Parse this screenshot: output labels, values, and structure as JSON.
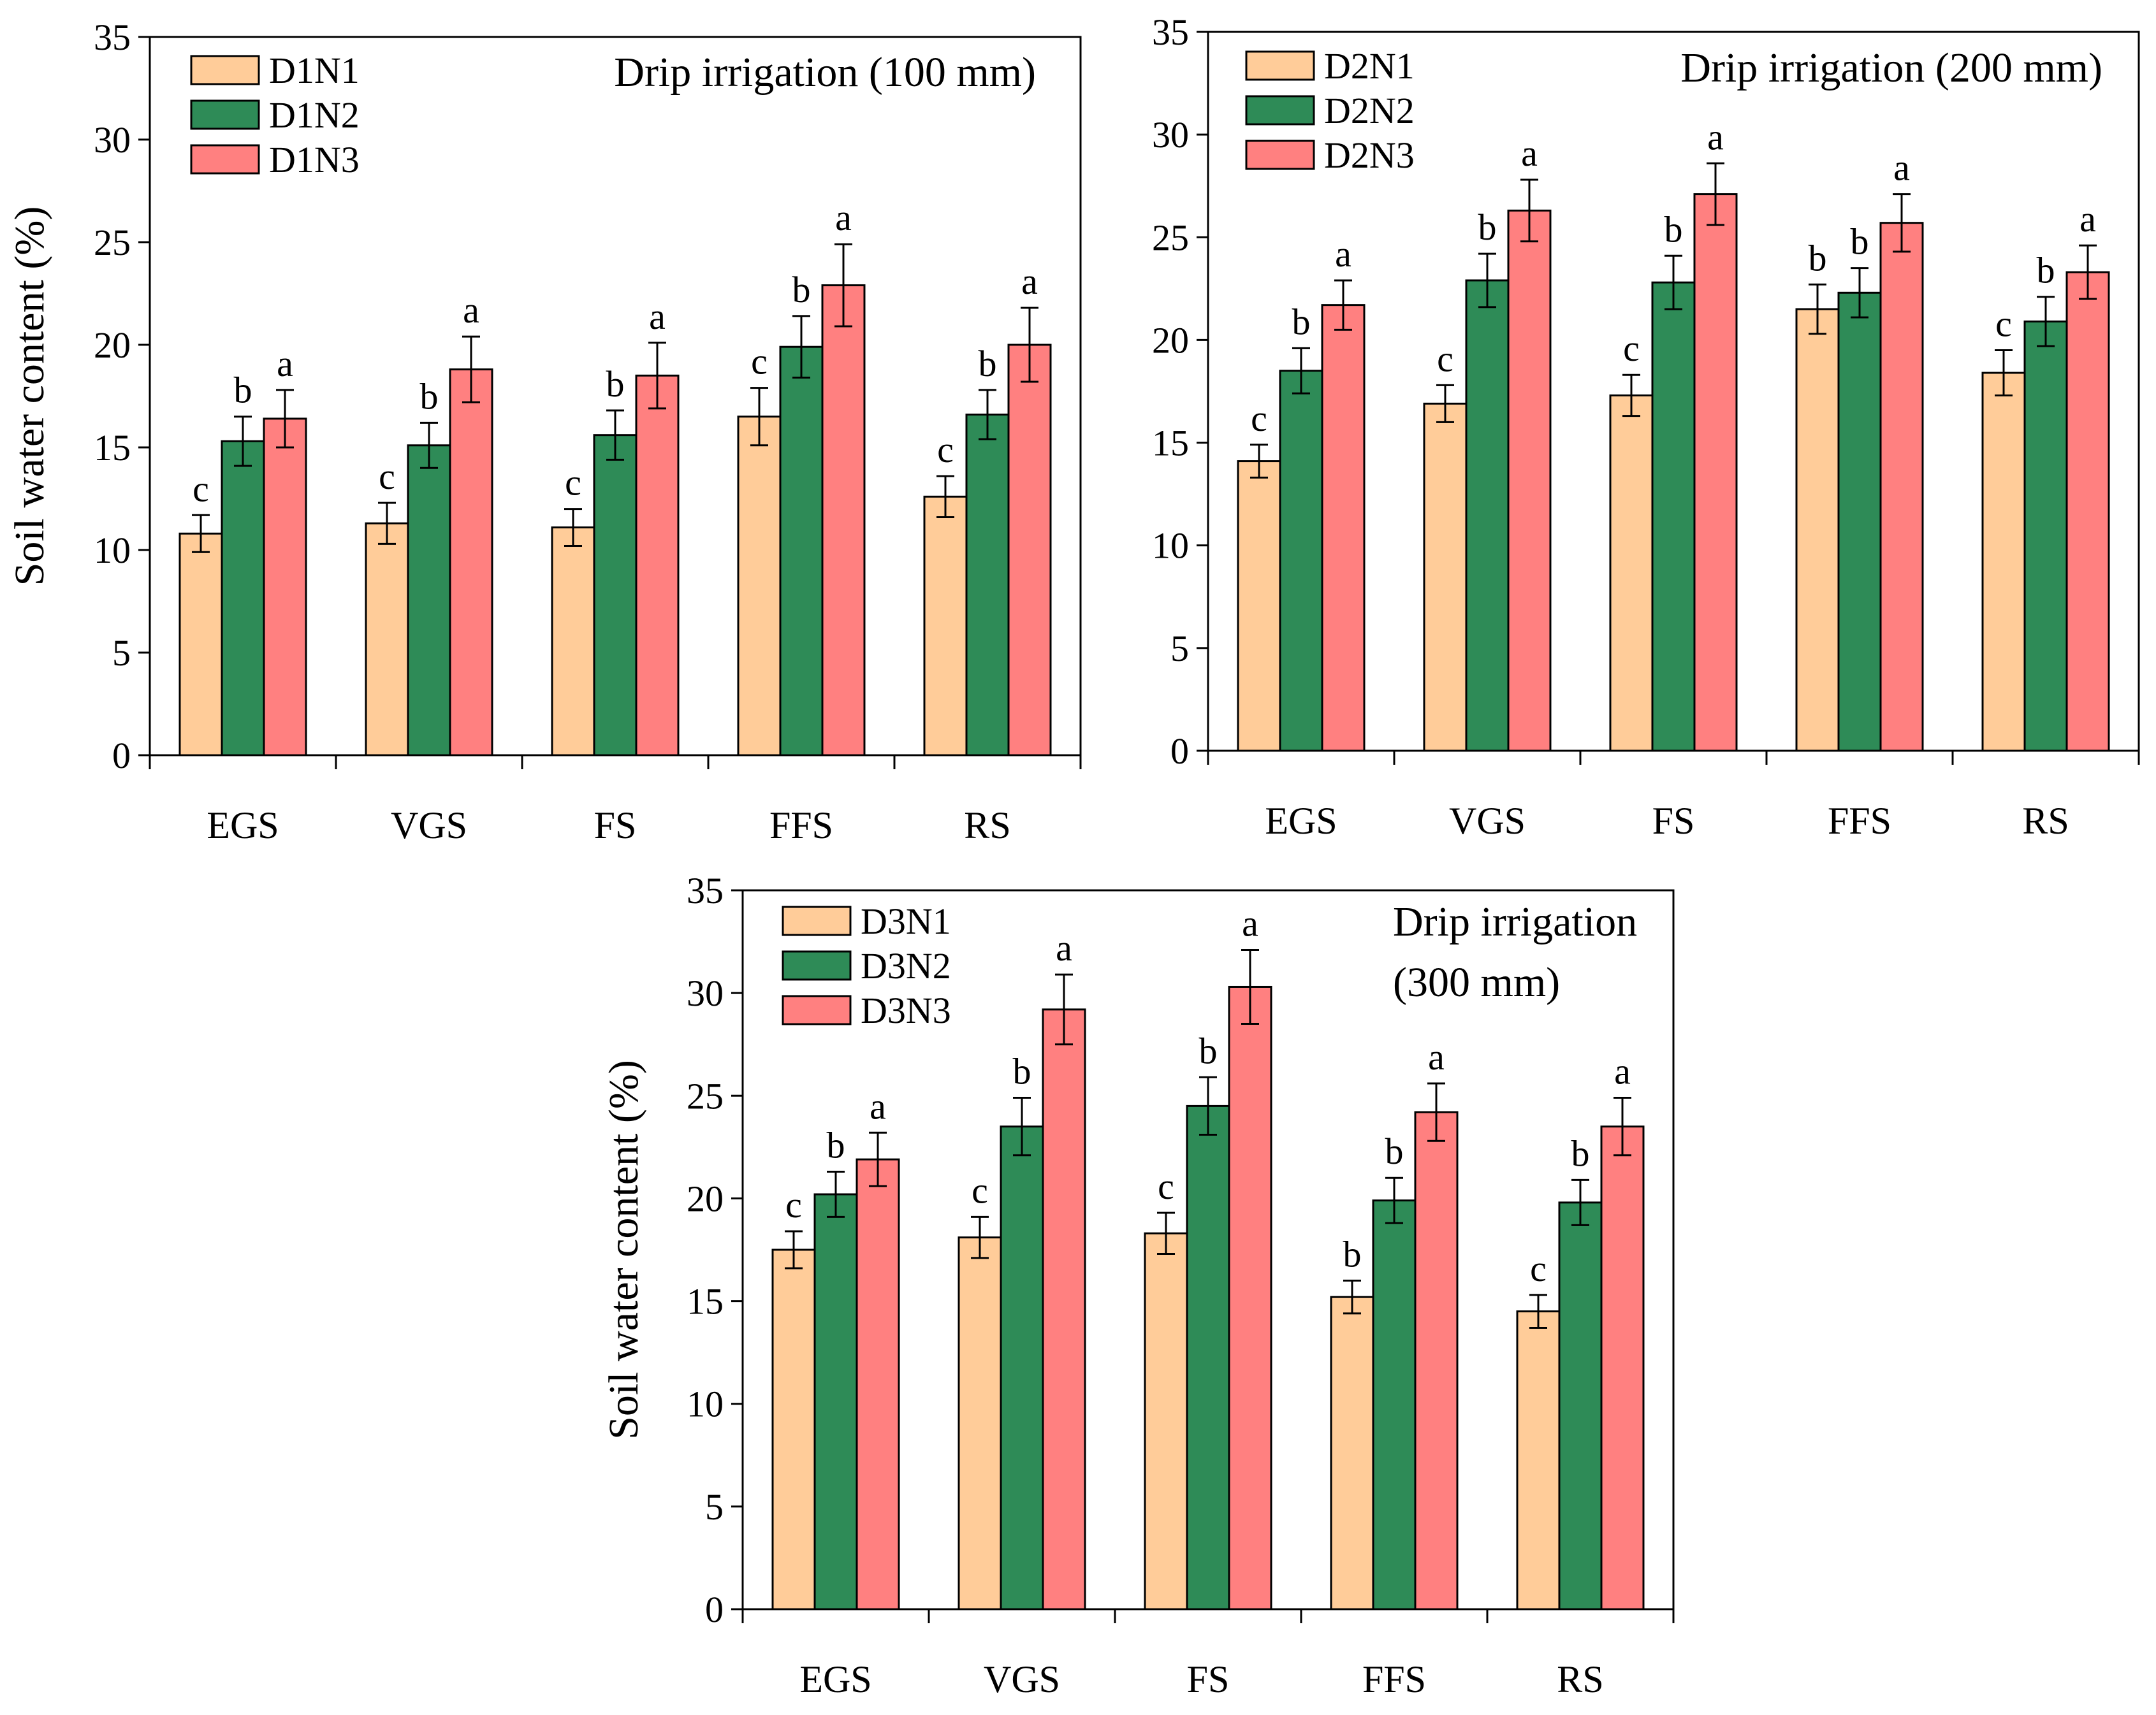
{
  "chart_data": [
    {
      "type": "bar",
      "title": "Drip irrigation (100 mm)",
      "title_lines": [
        "Drip irrigation (100 mm)"
      ],
      "ylabel": "Soil water content (%)",
      "xlabel": "",
      "ylim": [
        0,
        35
      ],
      "yticks": [
        "0",
        "5",
        "10",
        "15",
        "20",
        "25",
        "30",
        "35"
      ],
      "categories": [
        "EGS",
        "VGS",
        "FS",
        "FFS",
        "RS"
      ],
      "legend_position": "top-left",
      "grid": false,
      "series": [
        {
          "name": "D1N1",
          "color": "#FFCC99",
          "values": [
            10.8,
            11.3,
            11.1,
            16.5,
            12.6
          ],
          "errors": [
            0.9,
            1.0,
            0.9,
            1.4,
            1.0
          ],
          "letters": [
            "c",
            "c",
            "c",
            "c",
            "c"
          ]
        },
        {
          "name": "D1N2",
          "color": "#2E8B57",
          "values": [
            15.3,
            15.1,
            15.6,
            19.9,
            16.6
          ],
          "errors": [
            1.2,
            1.1,
            1.2,
            1.5,
            1.2
          ],
          "letters": [
            "b",
            "b",
            "b",
            "b",
            "b"
          ]
        },
        {
          "name": "D1N3",
          "color": "#FF8080",
          "values": [
            16.4,
            18.8,
            18.5,
            22.9,
            20.0
          ],
          "errors": [
            1.4,
            1.6,
            1.6,
            2.0,
            1.8
          ],
          "letters": [
            "a",
            "a",
            "a",
            "a",
            "a"
          ]
        }
      ]
    },
    {
      "type": "bar",
      "title": "Drip irrigation (200 mm)",
      "title_lines": [
        "Drip irrigation (200 mm)"
      ],
      "ylabel": "",
      "xlabel": "",
      "ylim": [
        0,
        35
      ],
      "yticks": [
        "0",
        "5",
        "10",
        "15",
        "20",
        "25",
        "30",
        "35"
      ],
      "categories": [
        "EGS",
        "VGS",
        "FS",
        "FFS",
        "RS"
      ],
      "legend_position": "top-left",
      "grid": false,
      "series": [
        {
          "name": "D2N1",
          "color": "#FFCC99",
          "values": [
            14.1,
            16.9,
            17.3,
            21.5,
            18.4
          ],
          "errors": [
            0.8,
            0.9,
            1.0,
            1.2,
            1.1
          ],
          "letters": [
            "c",
            "c",
            "c",
            "b",
            "c"
          ]
        },
        {
          "name": "D2N2",
          "color": "#2E8B57",
          "values": [
            18.5,
            22.9,
            22.8,
            22.3,
            20.9
          ],
          "errors": [
            1.1,
            1.3,
            1.3,
            1.2,
            1.2
          ],
          "letters": [
            "b",
            "b",
            "b",
            "b",
            "b"
          ]
        },
        {
          "name": "D2N3",
          "color": "#FF8080",
          "values": [
            21.7,
            26.3,
            27.1,
            25.7,
            23.3
          ],
          "errors": [
            1.2,
            1.5,
            1.5,
            1.4,
            1.3
          ],
          "letters": [
            "a",
            "a",
            "a",
            "a",
            "a"
          ]
        }
      ]
    },
    {
      "type": "bar",
      "title": "Drip irrigation (300 mm)",
      "title_lines": [
        "Drip irrigation",
        "(300 mm)"
      ],
      "ylabel": "Soil water content (%)",
      "xlabel": "",
      "ylim": [
        0,
        35
      ],
      "yticks": [
        "0",
        "5",
        "10",
        "15",
        "20",
        "25",
        "30",
        "35"
      ],
      "categories": [
        "EGS",
        "VGS",
        "FS",
        "FFS",
        "RS"
      ],
      "legend_position": "top-left",
      "grid": false,
      "series": [
        {
          "name": "D3N1",
          "color": "#FFCC99",
          "values": [
            17.5,
            18.1,
            18.3,
            15.2,
            14.5
          ],
          "errors": [
            0.9,
            1.0,
            1.0,
            0.8,
            0.8
          ],
          "letters": [
            "c",
            "c",
            "c",
            "b",
            "c"
          ]
        },
        {
          "name": "D3N2",
          "color": "#2E8B57",
          "values": [
            20.2,
            23.5,
            24.5,
            19.9,
            19.8
          ],
          "errors": [
            1.1,
            1.4,
            1.4,
            1.1,
            1.1
          ],
          "letters": [
            "b",
            "b",
            "b",
            "b",
            "b"
          ]
        },
        {
          "name": "D3N3",
          "color": "#FF8080",
          "values": [
            21.9,
            29.2,
            30.3,
            24.2,
            23.5
          ],
          "errors": [
            1.3,
            1.7,
            1.8,
            1.4,
            1.4
          ],
          "letters": [
            "a",
            "a",
            "a",
            "a",
            "a"
          ]
        }
      ]
    }
  ]
}
